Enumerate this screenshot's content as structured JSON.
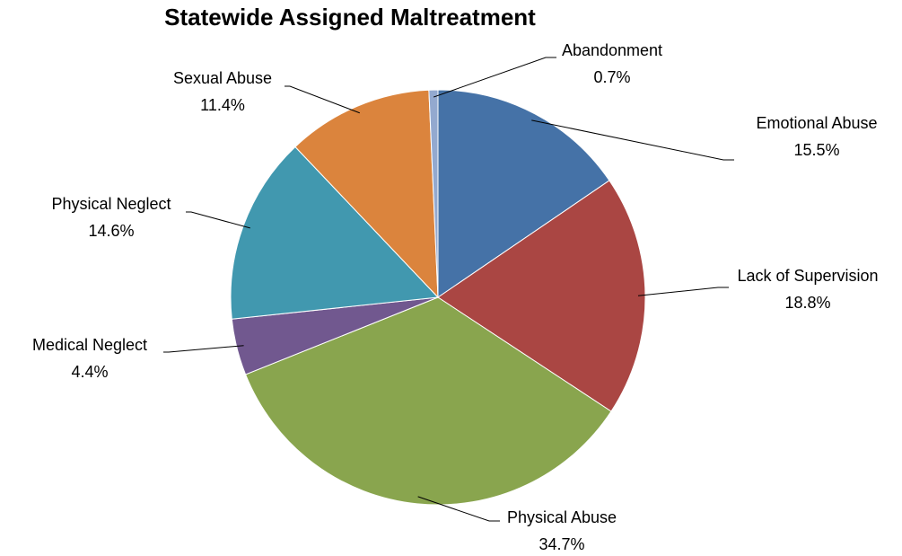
{
  "chart_data": {
    "type": "pie",
    "title": "Statewide Assigned Maltreatment",
    "slices": [
      {
        "label": "Emotional Abuse",
        "value": 15.5,
        "value_label": "15.5%",
        "color": "#4572A7"
      },
      {
        "label": "Lack of Supervision",
        "value": 18.8,
        "value_label": "18.8%",
        "color": "#AA4643"
      },
      {
        "label": "Physical Abuse",
        "value": 34.7,
        "value_label": "34.7%",
        "color": "#89A54E"
      },
      {
        "label": "Medical Neglect",
        "value": 4.4,
        "value_label": "4.4%",
        "color": "#71588F"
      },
      {
        "label": "Physical Neglect",
        "value": 14.6,
        "value_label": "14.6%",
        "color": "#4198AF"
      },
      {
        "label": "Sexual Abuse",
        "value": 11.4,
        "value_label": "11.4%",
        "color": "#DB843D"
      },
      {
        "label": "Abandonment",
        "value": 0.7,
        "value_label": "0.7%",
        "color": "#93A9CF"
      }
    ]
  }
}
